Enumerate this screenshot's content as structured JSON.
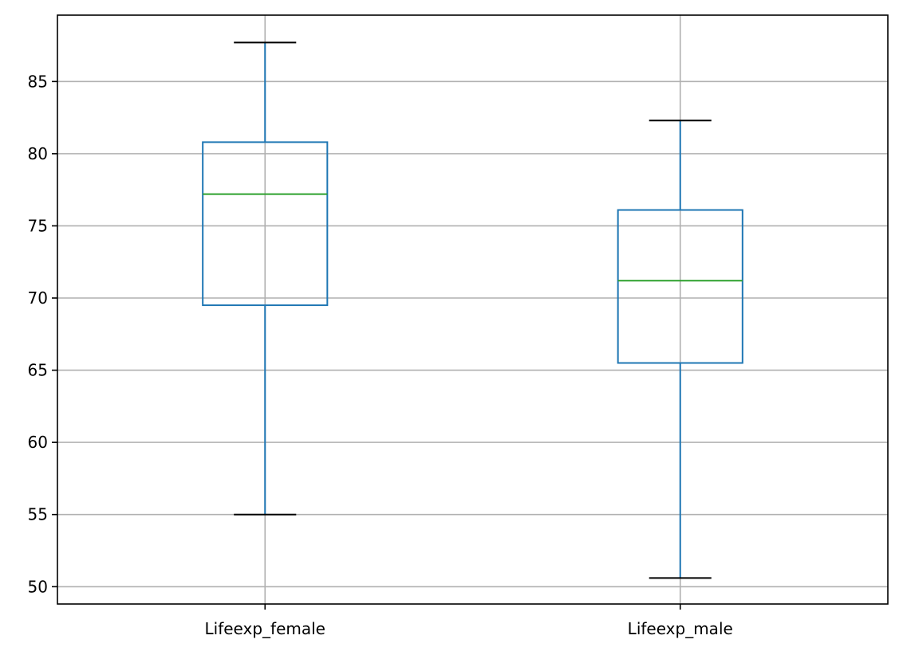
{
  "chart_data": {
    "type": "box",
    "title": "",
    "xlabel": "",
    "ylabel": "",
    "categories": [
      "Lifeexp_female",
      "Lifeexp_male"
    ],
    "boxes": [
      {
        "category": "Lifeexp_female",
        "whisker_low": 55.0,
        "q1": 69.5,
        "median": 77.2,
        "q3": 80.8,
        "whisker_high": 87.7
      },
      {
        "category": "Lifeexp_male",
        "whisker_low": 50.6,
        "q1": 65.5,
        "median": 71.2,
        "q3": 76.1,
        "whisker_high": 82.3
      }
    ],
    "ylim": [
      48.8,
      89.6
    ],
    "yticks": [
      50,
      55,
      60,
      65,
      70,
      75,
      80,
      85
    ],
    "grid": true,
    "colors": {
      "box": "#1f77b4",
      "median": "#2ca02c",
      "caps": "#000000",
      "grid": "#b0b0b0",
      "axes": "#000000"
    }
  }
}
